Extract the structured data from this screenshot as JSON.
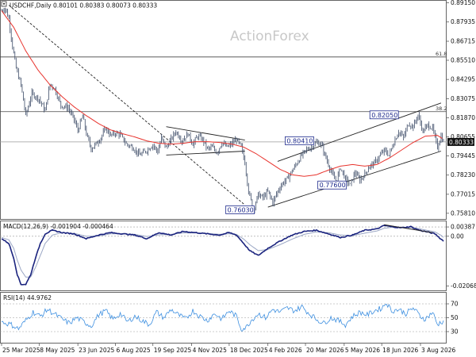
{
  "chart_data": {
    "type": "line",
    "symbol": "USDCHF",
    "timeframe": "Daily",
    "ohlc_header": "0.80101 0.80383 0.80073 0.80333",
    "watermark": "ActionForex",
    "last_price": "0.80333",
    "price_axis": {
      "ticks": [
        0.8915,
        0.87935,
        0.86715,
        0.8551,
        0.84295,
        0.83075,
        0.8187,
        0.80655,
        0.79445,
        0.7823,
        0.77015,
        0.7581
      ],
      "tick_labels": [
        "0.89150",
        "0.87935",
        "0.86715",
        "0.85510",
        "0.84295",
        "0.83075",
        "0.81870",
        "0.80655",
        "0.79445",
        "0.78230",
        "0.77015",
        "0.75810"
      ],
      "ylim": [
        0.7545,
        0.8928
      ]
    },
    "x_axis": {
      "labels": [
        "25 Mar 2025",
        "8 May 2025",
        "23 Jun 2025",
        "6 Aug 2025",
        "19 Sep 2025",
        "4 Nov 2025",
        "18 Dec 2025",
        "4 Feb 2026",
        "20 Mar 2026",
        "5 May 2026",
        "18 Jun 2026",
        "3 Aug 2026"
      ],
      "label_index": [
        0,
        31,
        63,
        94,
        125,
        157,
        188,
        220,
        251,
        283,
        314,
        346
      ],
      "total_bars": 366
    },
    "close_series": {
      "index": [
        0,
        3,
        6,
        9,
        12,
        16,
        20,
        25,
        31,
        36,
        40,
        44,
        49,
        55,
        60,
        63,
        67,
        70,
        74,
        78,
        82,
        86,
        90,
        94,
        98,
        103,
        108,
        114,
        120,
        125,
        129,
        132,
        136,
        140,
        144,
        149,
        154,
        158,
        162,
        166,
        170,
        174,
        178,
        182,
        186,
        190,
        194,
        198,
        201,
        204,
        208,
        212,
        216,
        220,
        224,
        228,
        232,
        236,
        240,
        244,
        248,
        252,
        256,
        260,
        264,
        268,
        272,
        276,
        280,
        284,
        288,
        292,
        296,
        300,
        304,
        308,
        312,
        316,
        320,
        324,
        328,
        332,
        336,
        340,
        344,
        348,
        352,
        356,
        360,
        363,
        365
      ],
      "values": [
        0.8865,
        0.888,
        0.8815,
        0.864,
        0.85,
        0.8395,
        0.82,
        0.834,
        0.8305,
        0.823,
        0.84,
        0.837,
        0.8265,
        0.825,
        0.8175,
        0.8105,
        0.82,
        0.8085,
        0.799,
        0.802,
        0.806,
        0.812,
        0.8075,
        0.809,
        0.808,
        0.802,
        0.8,
        0.795,
        0.798,
        0.8015,
        0.797,
        0.806,
        0.7995,
        0.805,
        0.81,
        0.804,
        0.8085,
        0.802,
        0.807,
        0.805,
        0.799,
        0.8,
        0.7965,
        0.803,
        0.8,
        0.802,
        0.805,
        0.8,
        0.79,
        0.772,
        0.7603,
        0.77,
        0.768,
        0.772,
        0.765,
        0.772,
        0.777,
        0.78,
        0.785,
        0.79,
        0.795,
        0.7985,
        0.8,
        0.803,
        0.802,
        0.793,
        0.785,
        0.778,
        0.787,
        0.78,
        0.776,
        0.784,
        0.779,
        0.783,
        0.788,
        0.79,
        0.794,
        0.798,
        0.795,
        0.803,
        0.81,
        0.806,
        0.815,
        0.813,
        0.8205,
        0.81,
        0.814,
        0.812,
        0.8,
        0.807,
        0.8033
      ]
    },
    "moving_average": {
      "color": "#e8342e",
      "index": [
        0,
        10,
        20,
        30,
        40,
        50,
        60,
        70,
        80,
        90,
        100,
        110,
        120,
        130,
        140,
        150,
        160,
        170,
        180,
        190,
        200,
        210,
        220,
        230,
        240,
        250,
        260,
        270,
        280,
        290,
        300,
        310,
        320,
        330,
        340,
        350,
        360,
        365
      ],
      "values": [
        0.8865,
        0.876,
        0.861,
        0.849,
        0.8395,
        0.832,
        0.8255,
        0.82,
        0.815,
        0.811,
        0.8085,
        0.8065,
        0.804,
        0.8025,
        0.802,
        0.8025,
        0.8035,
        0.8035,
        0.803,
        0.802,
        0.8,
        0.796,
        0.791,
        0.786,
        0.7825,
        0.7815,
        0.7825,
        0.7855,
        0.788,
        0.789,
        0.788,
        0.789,
        0.793,
        0.798,
        0.803,
        0.807,
        0.8075,
        0.805
      ]
    },
    "horizontal_levels": [
      {
        "label": "61.8",
        "value": 0.8572
      },
      {
        "label": "38.2",
        "value": 0.8225
      },
      {
        "label": "",
        "value": 0.80333
      }
    ],
    "trendlines": [
      {
        "style": "dashed",
        "points": [
          [
            6,
            0.89
          ],
          [
            200,
            0.764
          ]
        ]
      },
      {
        "style": "solid",
        "points": [
          [
            136,
            0.813
          ],
          [
            201,
            0.8045
          ]
        ]
      },
      {
        "style": "solid",
        "points": [
          [
            136,
            0.795
          ],
          [
            201,
            0.7975
          ]
        ]
      },
      {
        "style": "solid",
        "points": [
          [
            220,
            0.762
          ],
          [
            363,
            0.7975
          ]
        ]
      },
      {
        "style": "solid",
        "points": [
          [
            228,
            0.791
          ],
          [
            363,
            0.828
          ]
        ]
      }
    ],
    "price_labels": [
      {
        "text": "0.76030",
        "index": 197,
        "value": 0.7603
      },
      {
        "text": "0.80410",
        "index": 246,
        "value": 0.8041
      },
      {
        "text": "0.77600",
        "index": 273,
        "value": 0.776
      },
      {
        "text": "0.82050",
        "index": 316,
        "value": 0.8205
      }
    ],
    "macd": {
      "label": "MACD(12,26,9) -0.001904 -0.000464",
      "ticks": [
        0.00387,
        0.0,
        -0.020686
      ],
      "tick_labels": [
        "0.00387",
        "0.00",
        "-0.020686"
      ],
      "ylim": [
        -0.0225,
        0.0062
      ],
      "index": [
        0,
        6,
        10,
        13,
        16,
        20,
        24,
        28,
        32,
        36,
        42,
        50,
        60,
        70,
        80,
        90,
        100,
        110,
        120,
        130,
        140,
        150,
        160,
        170,
        180,
        188,
        194,
        200,
        205,
        212,
        220,
        230,
        240,
        250,
        260,
        270,
        280,
        290,
        300,
        310,
        316,
        322,
        330,
        338,
        345,
        350,
        358,
        363,
        365
      ],
      "values": [
        -0.001,
        -0.003,
        -0.009,
        -0.016,
        -0.02,
        -0.02,
        -0.016,
        -0.009,
        -0.003,
        0.001,
        0.0025,
        0.0015,
        0.001,
        -0.001,
        0.0005,
        0.0015,
        0.001,
        0.0005,
        -0.001,
        0.0015,
        0.0005,
        0.002,
        0.0015,
        0.001,
        0.0005,
        0.0015,
        0.0005,
        -0.003,
        -0.006,
        -0.008,
        -0.005,
        -0.002,
        0.0005,
        0.002,
        0.0025,
        0.001,
        -0.0005,
        0.0005,
        0.0025,
        0.003,
        0.0045,
        0.004,
        0.0035,
        0.004,
        0.0025,
        0.002,
        0.001,
        -0.0012,
        -0.0019
      ],
      "signal_values": [
        -0.0005,
        -0.0015,
        -0.005,
        -0.01,
        -0.014,
        -0.017,
        -0.017,
        -0.013,
        -0.008,
        -0.003,
        0.0005,
        0.0015,
        0.0012,
        0.0,
        0.0001,
        0.001,
        0.0011,
        0.0008,
        -0.0001,
        0.0006,
        0.0008,
        0.0014,
        0.0014,
        0.0012,
        0.0008,
        0.001,
        0.0008,
        -0.0012,
        -0.0035,
        -0.006,
        -0.0055,
        -0.0035,
        -0.0012,
        0.0008,
        0.0018,
        0.0015,
        0.0005,
        0.0003,
        0.0013,
        0.0022,
        0.0033,
        0.0037,
        0.0036,
        0.0037,
        0.0031,
        0.0026,
        0.0018,
        0.0004,
        -0.0005
      ],
      "trendline": [
        [
          316,
          0.0048
        ],
        [
          356,
          0.0015
        ]
      ]
    },
    "rsi": {
      "label": "RSI(14) 44.9762",
      "ticks": [
        70,
        50,
        30
      ],
      "tick_labels": [
        "70",
        "50",
        "30"
      ],
      "ylim": [
        14,
        86
      ],
      "index": [
        0,
        8,
        14,
        20,
        26,
        32,
        38,
        44,
        50,
        56,
        62,
        68,
        74,
        80,
        86,
        92,
        98,
        104,
        110,
        116,
        122,
        128,
        134,
        140,
        146,
        152,
        158,
        164,
        170,
        176,
        182,
        188,
        194,
        198,
        202,
        206,
        212,
        218,
        224,
        230,
        236,
        242,
        248,
        254,
        260,
        266,
        272,
        278,
        284,
        290,
        296,
        302,
        308,
        314,
        318,
        322,
        328,
        334,
        340,
        346,
        350,
        356,
        360,
        363,
        365
      ],
      "values": [
        44,
        40,
        34,
        46,
        58,
        52,
        62,
        55,
        48,
        42,
        50,
        44,
        38,
        54,
        60,
        48,
        56,
        44,
        52,
        46,
        40,
        58,
        50,
        62,
        54,
        48,
        60,
        52,
        46,
        56,
        48,
        60,
        52,
        34,
        36,
        46,
        56,
        50,
        62,
        58,
        64,
        60,
        66,
        56,
        48,
        42,
        50,
        46,
        40,
        52,
        58,
        54,
        60,
        64,
        72,
        60,
        62,
        56,
        64,
        52,
        48,
        58,
        40,
        44,
        45
      ]
    }
  }
}
